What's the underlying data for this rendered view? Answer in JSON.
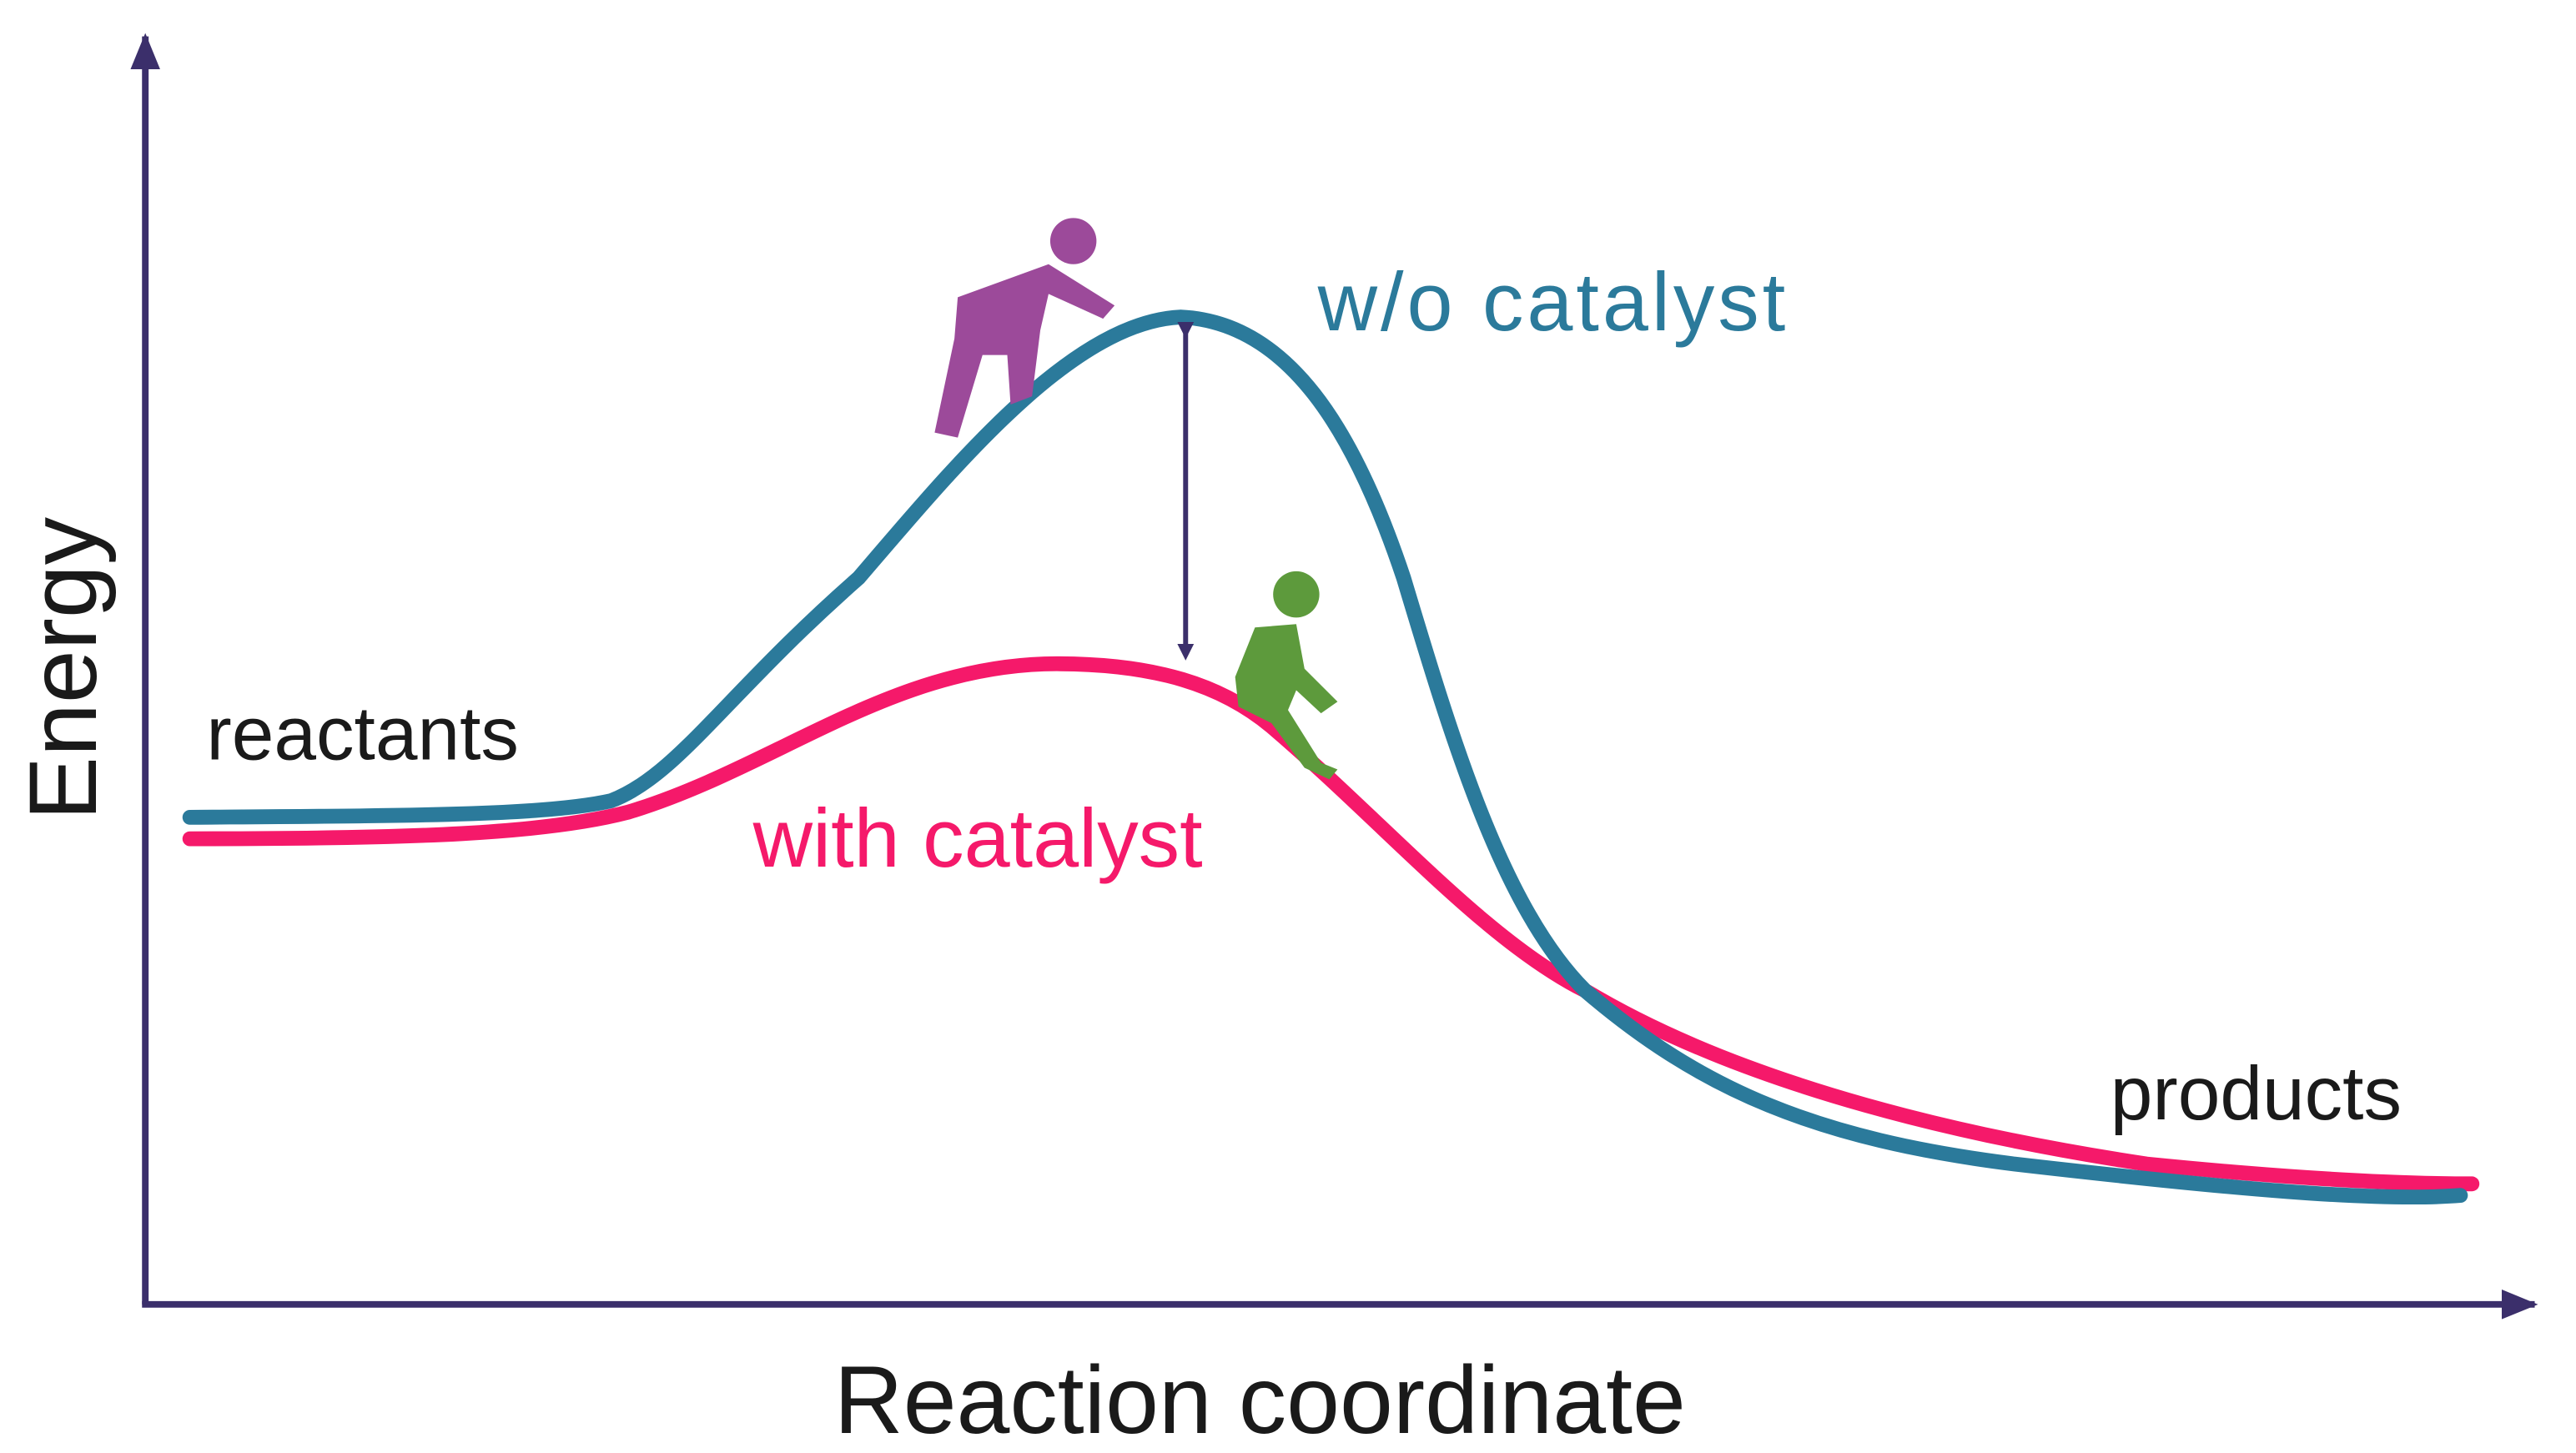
{
  "axes": {
    "y_label": "Energy",
    "x_label": "Reaction coordinate"
  },
  "labels": {
    "reactants": "reactants",
    "products": "products",
    "without_catalyst": "w/o catalyst",
    "with_catalyst": "with catalyst"
  }
}
